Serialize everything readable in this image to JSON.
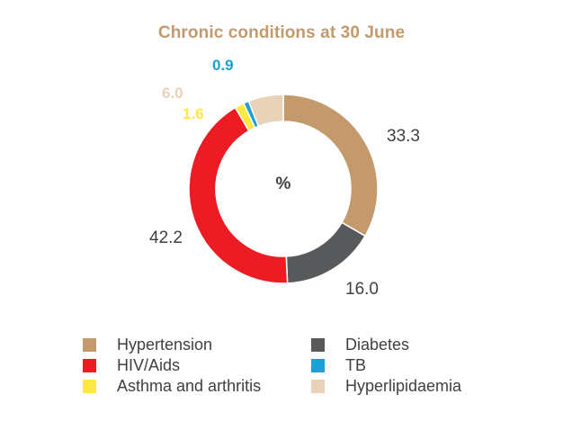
{
  "chart_data": {
    "type": "pie",
    "variant": "donut",
    "title": "Chronic conditions at 30 June",
    "center_label": "%",
    "categories": [
      "Hypertension",
      "Diabetes",
      "HIV/Aids",
      "TB",
      "Asthma and arthritis",
      "Hyperlipidaemia"
    ],
    "slices": [
      {
        "name": "Hypertension",
        "value": 33.3,
        "label": "33.3",
        "color": "#c49a6c",
        "label_color": "#404040"
      },
      {
        "name": "Diabetes",
        "value": 16.0,
        "label": "16.0",
        "color": "#58595b",
        "label_color": "#404040"
      },
      {
        "name": "HIV/Aids",
        "value": 42.2,
        "label": "42.2",
        "color": "#ed1c24",
        "label_color": "#404040"
      },
      {
        "name": "Asthma and arthritis",
        "value": 1.6,
        "label": "1.6",
        "color": "#fde942",
        "label_color": "#fde942"
      },
      {
        "name": "TB",
        "value": 0.9,
        "label": "0.9",
        "color": "#1ba1d8",
        "label_color": "#1ba1d8"
      },
      {
        "name": "Hyperlipidaemia",
        "value": 6.0,
        "label": "6.0",
        "color": "#e8d2b8",
        "label_color": "#e8d2b8"
      }
    ],
    "legend_placement": "bottom",
    "legend_order": [
      "Hypertension",
      "Diabetes",
      "HIV/Aids",
      "TB",
      "Asthma and arthritis",
      "Hyperlipidaemia"
    ]
  }
}
